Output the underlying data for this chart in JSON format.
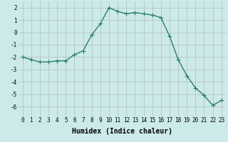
{
  "x": [
    0,
    1,
    2,
    3,
    4,
    5,
    6,
    7,
    8,
    9,
    10,
    11,
    12,
    13,
    14,
    15,
    16,
    17,
    18,
    19,
    20,
    21,
    22,
    23
  ],
  "y": [
    -2.0,
    -2.2,
    -2.4,
    -2.4,
    -2.3,
    -2.3,
    -1.8,
    -1.5,
    -0.2,
    0.7,
    2.0,
    1.7,
    1.5,
    1.6,
    1.5,
    1.4,
    1.2,
    -0.3,
    -2.2,
    -3.5,
    -4.5,
    -5.1,
    -5.9,
    -5.5
  ],
  "line_color": "#2e7d6e",
  "marker": "+",
  "markersize": 4,
  "linewidth": 1.0,
  "xlabel": "Humidex (Indice chaleur)",
  "xlim": [
    -0.5,
    23.5
  ],
  "ylim": [
    -6.8,
    2.5
  ],
  "yticks": [
    -6,
    -5,
    -4,
    -3,
    -2,
    -1,
    0,
    1,
    2
  ],
  "xticks": [
    0,
    1,
    2,
    3,
    4,
    5,
    6,
    7,
    8,
    9,
    10,
    11,
    12,
    13,
    14,
    15,
    16,
    17,
    18,
    19,
    20,
    21,
    22,
    23
  ],
  "bg_color": "#cceaea",
  "grid_color": "#b0b0b0",
  "xlabel_fontsize": 7,
  "tick_fontsize": 5.5
}
